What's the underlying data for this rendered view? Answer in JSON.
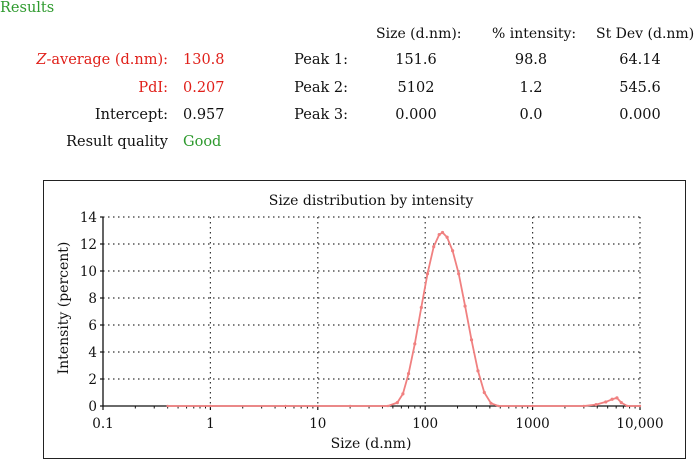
{
  "heading": "Results",
  "columns": {
    "size": "Size (d.nm):",
    "intensity": "% intensity:",
    "stdev": "St Dev (d.nm):"
  },
  "summary": [
    {
      "label_prefix": "Z",
      "label_rest": "-average (d.nm):",
      "value": "130.8",
      "color": "#e0201a"
    },
    {
      "label": "PdI:",
      "value": "0.207",
      "color": "#e0201a"
    },
    {
      "label": "Intercept:",
      "value": "0.957",
      "color": "#111111"
    },
    {
      "label": "Result quality",
      "value": "Good",
      "color": "#2e9a2e"
    }
  ],
  "peaks": [
    {
      "label": "Peak 1:",
      "size": "151.6",
      "intensity": "98.8",
      "stdev": "64.14"
    },
    {
      "label": "Peak 2:",
      "size": "5102",
      "intensity": "1.2",
      "stdev": "545.6"
    },
    {
      "label": "Peak 3:",
      "size": "0.000",
      "intensity": "0.0",
      "stdev": "0.000"
    }
  ],
  "chart_data": {
    "type": "line",
    "title": "Size distribution by intensity",
    "xlabel": "Size (d.nm)",
    "ylabel": "Intensity (percent)",
    "xscale": "log",
    "xlim": [
      0.1,
      10000
    ],
    "ylim": [
      0,
      14
    ],
    "x_ticks": [
      0.1,
      1,
      10,
      100,
      1000,
      10000
    ],
    "x_tick_labels": [
      "0.1",
      "1",
      "10",
      "100",
      "1000",
      "10,000"
    ],
    "y_ticks": [
      0,
      2,
      4,
      6,
      8,
      10,
      12,
      14
    ],
    "y_tick_labels": [
      "0",
      "2",
      "4",
      "6",
      "8",
      "10",
      "12",
      "14"
    ],
    "grid": true,
    "series": [
      {
        "name": "Intensity",
        "color": "#f08080",
        "x": [
          0.4,
          1,
          5,
          20,
          45,
          55,
          62,
          70,
          80,
          92,
          105,
          120,
          135,
          145,
          160,
          180,
          205,
          235,
          270,
          310,
          355,
          410,
          480,
          1000,
          3000,
          3900,
          4800,
          5500,
          6100,
          6700,
          7600,
          10000
        ],
        "y": [
          0,
          0,
          0,
          0,
          0,
          0.25,
          0.9,
          2.4,
          4.6,
          7.3,
          9.8,
          11.8,
          12.7,
          12.85,
          12.5,
          11.5,
          9.8,
          7.4,
          4.9,
          2.6,
          1.0,
          0.2,
          0,
          0,
          0,
          0.1,
          0.3,
          0.5,
          0.6,
          0.25,
          0,
          0
        ]
      }
    ]
  }
}
